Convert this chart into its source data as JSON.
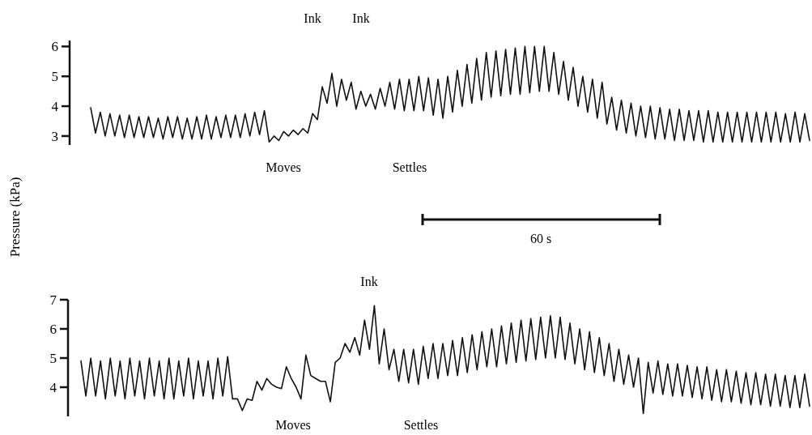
{
  "chart_data": [
    {
      "type": "line",
      "ylabel": "Pressure (kPa)",
      "ylim": [
        2.7,
        6.2
      ],
      "yticks": [
        3,
        4,
        5,
        6
      ],
      "tick_labels": "y",
      "annotations": [
        "Ink",
        "Ink",
        "Moves",
        "Settles",
        "60 s"
      ],
      "series": [
        {
          "color": "#111111",
          "values": [
            3.95,
            3.1,
            3.8,
            3.0,
            3.75,
            3.0,
            3.7,
            2.95,
            3.7,
            2.95,
            3.65,
            2.95,
            3.65,
            2.95,
            3.6,
            2.9,
            3.65,
            2.95,
            3.65,
            2.9,
            3.6,
            2.9,
            3.65,
            2.9,
            3.7,
            2.9,
            3.65,
            2.95,
            3.7,
            2.95,
            3.7,
            2.95,
            3.75,
            3.0,
            3.8,
            3.05,
            3.85,
            2.8,
            3.0,
            2.85,
            3.15,
            3.0,
            3.2,
            3.05,
            3.25,
            3.1,
            3.75,
            3.55,
            4.65,
            4.1,
            5.1,
            4.0,
            4.9,
            4.2,
            4.8,
            3.9,
            4.5,
            4.0,
            4.4,
            3.9,
            4.6,
            4.0,
            4.8,
            3.9,
            4.9,
            3.85,
            4.9,
            3.85,
            5.0,
            3.85,
            4.95,
            3.7,
            4.9,
            3.6,
            5.0,
            3.8,
            5.2,
            4.0,
            5.4,
            4.1,
            5.6,
            4.2,
            5.8,
            4.3,
            5.85,
            4.35,
            5.9,
            4.4,
            5.95,
            4.4,
            6.0,
            4.45,
            6.0,
            4.5,
            6.0,
            4.5,
            5.8,
            4.4,
            5.5,
            4.2,
            5.3,
            4.0,
            5.0,
            3.8,
            4.9,
            3.6,
            4.8,
            3.4,
            4.3,
            3.2,
            4.2,
            3.1,
            4.1,
            3.0,
            4.0,
            2.95,
            4.0,
            2.9,
            3.95,
            2.9,
            3.9,
            2.85,
            3.9,
            2.85,
            3.85,
            2.85,
            3.85,
            2.8,
            3.85,
            2.8,
            3.8,
            2.8,
            3.8,
            2.8,
            3.8,
            2.8,
            3.8,
            2.8,
            3.8,
            2.8,
            3.8,
            2.8,
            3.8,
            2.8,
            3.75,
            2.8,
            3.8,
            2.8,
            3.75,
            2.85
          ]
        }
      ],
      "categories": [
        null,
        null,
        null,
        null,
        null,
        null,
        null,
        null,
        null,
        null,
        null,
        null,
        null,
        null,
        null,
        null,
        null,
        null,
        null,
        null,
        null,
        null,
        null,
        null,
        null,
        null,
        null,
        null,
        null,
        null,
        null,
        null,
        null,
        null,
        null,
        null,
        null,
        null,
        null,
        null,
        null,
        null,
        null,
        null,
        null,
        null,
        null,
        null,
        null,
        null,
        null,
        null,
        null,
        null,
        null,
        null,
        null,
        null,
        null,
        null,
        null,
        null,
        null,
        null,
        null,
        null,
        null,
        null,
        null,
        null,
        null,
        null,
        null,
        null,
        null,
        null,
        null,
        null,
        null,
        null,
        null,
        null,
        null,
        null,
        null,
        null,
        null,
        null,
        null,
        null,
        null,
        null,
        null,
        null,
        null,
        null,
        null,
        null,
        null,
        null,
        null,
        null,
        null,
        null,
        null,
        null,
        null,
        null,
        null,
        null,
        null,
        null,
        null,
        null,
        null,
        null,
        null,
        null,
        null,
        null,
        null,
        null,
        null,
        null,
        null,
        null,
        null,
        null,
        null,
        null,
        null,
        null,
        null,
        null,
        null,
        null,
        null,
        null,
        null,
        null,
        null,
        null,
        null,
        null,
        null,
        null,
        null,
        null,
        null,
        null
      ]
    },
    {
      "type": "line",
      "ylim": [
        3.0,
        7.0
      ],
      "yticks": [
        4,
        5,
        6,
        7
      ],
      "tick_labels": "y",
      "annotations": [
        "Ink",
        "Moves",
        "Settles"
      ],
      "series": [
        {
          "color": "#111111",
          "values": [
            4.9,
            3.7,
            5.0,
            3.7,
            4.9,
            3.6,
            5.0,
            3.7,
            4.9,
            3.6,
            5.0,
            3.7,
            4.9,
            3.6,
            5.0,
            3.7,
            4.9,
            3.6,
            5.0,
            3.6,
            4.9,
            3.7,
            5.0,
            3.6,
            4.9,
            3.7,
            4.9,
            3.6,
            5.0,
            3.7,
            5.05,
            3.6,
            3.6,
            3.2,
            3.6,
            3.55,
            4.2,
            3.9,
            4.3,
            4.1,
            4.0,
            3.95,
            4.7,
            4.3,
            4.0,
            3.6,
            5.1,
            4.4,
            4.3,
            4.2,
            4.2,
            3.5,
            4.85,
            5.0,
            5.5,
            5.2,
            5.7,
            5.1,
            6.3,
            5.3,
            6.8,
            4.8,
            6.0,
            4.6,
            5.3,
            4.2,
            5.3,
            4.15,
            5.3,
            4.1,
            5.4,
            4.3,
            5.5,
            4.3,
            5.5,
            4.4,
            5.6,
            4.4,
            5.7,
            4.5,
            5.8,
            4.6,
            5.9,
            4.7,
            6.0,
            4.7,
            6.1,
            4.8,
            6.2,
            4.85,
            6.3,
            4.9,
            6.35,
            4.95,
            6.4,
            5.0,
            6.45,
            5.0,
            6.4,
            4.95,
            6.2,
            4.8,
            6.0,
            4.6,
            5.9,
            4.5,
            5.7,
            4.4,
            5.5,
            4.2,
            5.3,
            4.1,
            5.1,
            4.0,
            5.0,
            3.1,
            4.85,
            3.8,
            4.9,
            3.75,
            4.8,
            3.7,
            4.8,
            3.7,
            4.75,
            3.65,
            4.7,
            3.6,
            4.7,
            3.55,
            4.6,
            3.5,
            4.6,
            3.5,
            4.55,
            3.45,
            4.5,
            3.4,
            4.5,
            3.4,
            4.45,
            3.35,
            4.45,
            3.35,
            4.4,
            3.3,
            4.4,
            3.3,
            4.45,
            3.35
          ]
        }
      ],
      "categories": [
        null,
        null,
        null,
        null,
        null,
        null,
        null,
        null,
        null,
        null,
        null,
        null,
        null,
        null,
        null,
        null,
        null,
        null,
        null,
        null,
        null,
        null,
        null,
        null,
        null,
        null,
        null,
        null,
        null,
        null,
        null,
        null,
        null,
        null,
        null,
        null,
        null,
        null,
        null,
        null,
        null,
        null,
        null,
        null,
        null,
        null,
        null,
        null,
        null,
        null,
        null,
        null,
        null,
        null,
        null,
        null,
        null,
        null,
        null,
        null,
        null,
        null,
        null,
        null,
        null,
        null,
        null,
        null,
        null,
        null,
        null,
        null,
        null,
        null,
        null,
        null,
        null,
        null,
        null,
        null,
        null,
        null,
        null,
        null,
        null,
        null,
        null,
        null,
        null,
        null,
        null,
        null,
        null,
        null,
        null,
        null,
        null,
        null,
        null,
        null,
        null,
        null,
        null,
        null,
        null,
        null,
        null,
        null,
        null,
        null,
        null,
        null,
        null,
        null,
        null,
        null,
        null,
        null,
        null,
        null,
        null,
        null,
        null,
        null,
        null,
        null,
        null,
        null,
        null,
        null,
        null,
        null,
        null,
        null,
        null,
        null,
        null,
        null,
        null,
        null,
        null,
        null,
        null,
        null,
        null,
        null,
        null,
        null,
        null,
        null
      ]
    }
  ]
}
